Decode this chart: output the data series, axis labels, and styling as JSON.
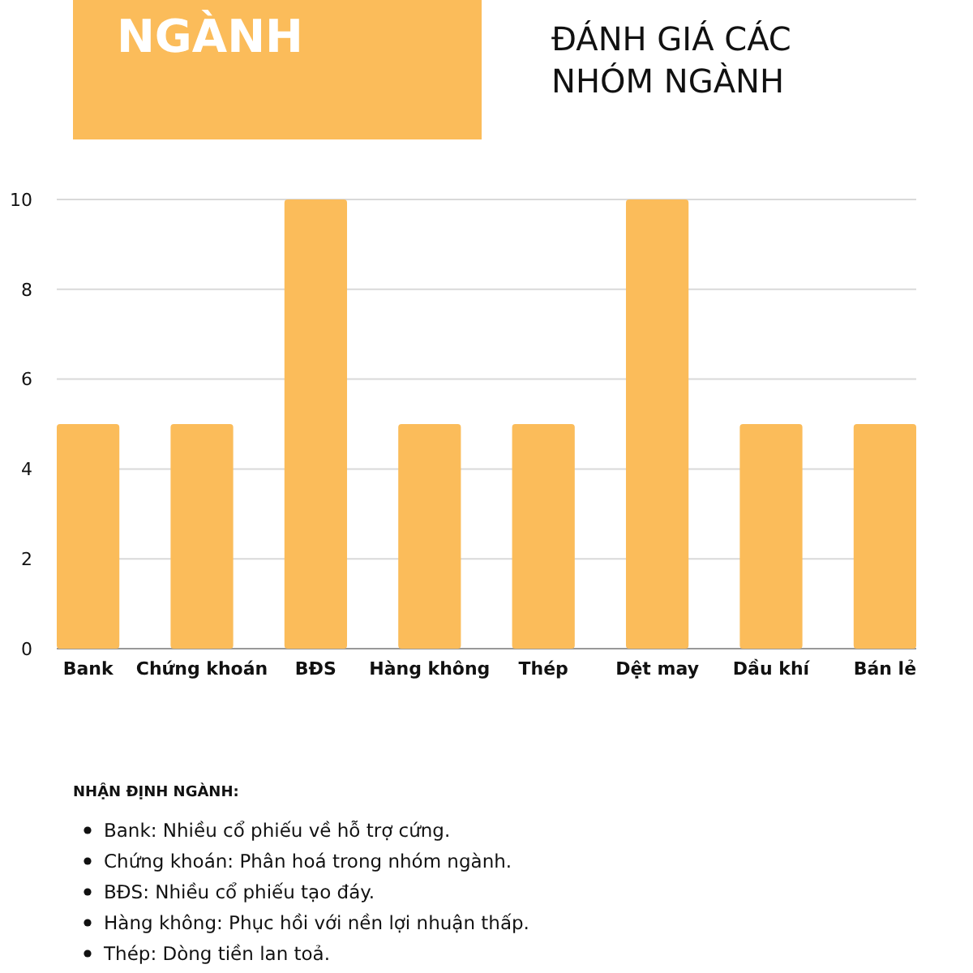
{
  "chart_data": {
    "type": "bar",
    "title": "ĐÁNH GIÁ CÁC NHÓM NGÀNH",
    "categories": [
      "Bank",
      "Chứng khoán",
      "BĐS",
      "Hàng không",
      "Thép",
      "Dệt may",
      "Dầu khí",
      "Bán lẻ"
    ],
    "values": [
      5,
      5,
      10,
      5,
      5,
      10,
      5,
      5
    ],
    "color": "#fbbc5a",
    "ylim": [
      0,
      10
    ],
    "yticks": [
      0,
      2,
      4,
      6,
      8,
      10
    ],
    "grid": "y",
    "annotations": [
      "NGÀNH",
      "NHẬN ĐỊNH NGÀNH:",
      "Bank: Nhiều cổ phiếu về hỗ trợ cứng.",
      "Chứng khoán: Phân hoá trong nhóm ngành.",
      "BĐS: Nhiều cổ phiếu tạo đáy.",
      "Hàng không: Phục hồi với nền lợi nhuận thấp.",
      "Thép: Dòng tiền lan toả."
    ]
  }
}
